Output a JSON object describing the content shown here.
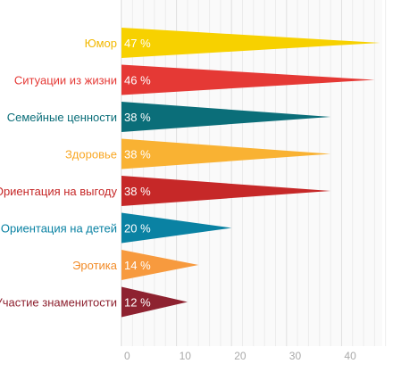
{
  "chart_data": {
    "type": "bar",
    "title": "",
    "xlabel": "",
    "ylabel": "",
    "xlim": [
      0,
      48
    ],
    "grid": true,
    "xticks": [
      0,
      10,
      20,
      30,
      40
    ],
    "categories": [
      "Юмор",
      "Ситуации из жизни",
      "Семейные ценности",
      "Здоровье",
      "Ориентация на выгоду",
      "Ориентация на детей",
      "Эротика",
      "Участие знаменитости"
    ],
    "values": [
      47,
      46,
      38,
      38,
      38,
      20,
      14,
      12
    ],
    "value_labels": [
      "47 %",
      "46 %",
      "38 %",
      "38 %",
      "38 %",
      "20 %",
      "14 %",
      "12 %"
    ],
    "colors": [
      "#f7d100",
      "#e53935",
      "#0b6e79",
      "#f9b233",
      "#c62828",
      "#0a82a3",
      "#f79a3e",
      "#8e2230"
    ],
    "label_colors": [
      "#f2b800",
      "#e53935",
      "#0b6e79",
      "#f9a825",
      "#c62828",
      "#0a82a3",
      "#f28c28",
      "#8e2230"
    ]
  }
}
